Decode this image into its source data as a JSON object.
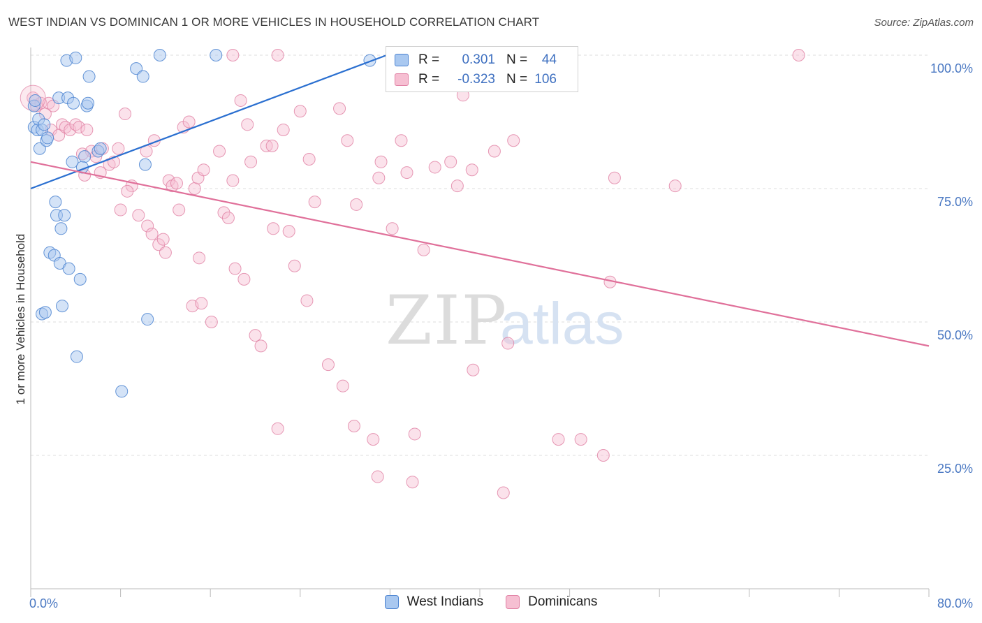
{
  "header": {
    "title": "WEST INDIAN VS DOMINICAN 1 OR MORE VEHICLES IN HOUSEHOLD CORRELATION CHART",
    "source": "Source: ZipAtlas.com"
  },
  "watermark": {
    "zip": "ZIP",
    "atlas": "atlas"
  },
  "legend": {
    "rows": [
      {
        "r_label": "R =",
        "r_value": "0.301",
        "n_label": "N =",
        "n_value": "44"
      },
      {
        "r_label": "R =",
        "r_value": "-0.323",
        "n_label": "N =",
        "n_value": "106"
      }
    ]
  },
  "colors": {
    "west_indians_fill": "#a9c8f0",
    "west_indians_stroke": "#4a82d0",
    "west_indians_line": "#2a6fd0",
    "dominicans_fill": "#f6bfd2",
    "dominicans_stroke": "#e07fa3",
    "dominicans_line": "#e0709a",
    "grid": "#dddddd",
    "axis_text": "#4a78c2"
  },
  "chart_data": {
    "type": "scatter",
    "ylabel": "1 or more Vehicles in Household",
    "x_ticks": [
      "0.0%",
      "80.0%"
    ],
    "y_ticks": [
      "100.0%",
      "75.0%",
      "50.0%",
      "25.0%"
    ],
    "xlim": [
      0,
      80
    ],
    "ylim": [
      0,
      100
    ],
    "grid": true,
    "series": [
      {
        "name": "West Indians",
        "trend": {
          "x0": 0,
          "y0": 75.0,
          "x1": 31.7,
          "y1": 100.0
        },
        "points": [
          [
            0.3,
            90.5
          ],
          [
            0.3,
            86.5
          ],
          [
            0.4,
            91.5
          ],
          [
            0.6,
            86.0
          ],
          [
            0.7,
            88.0
          ],
          [
            0.8,
            82.5
          ],
          [
            1.0,
            86.0
          ],
          [
            1.2,
            87.0
          ],
          [
            1.4,
            84.0
          ],
          [
            1.5,
            84.5
          ],
          [
            2.2,
            72.5
          ],
          [
            2.3,
            70.0
          ],
          [
            2.5,
            92.0
          ],
          [
            2.7,
            67.5
          ],
          [
            3.0,
            70.0
          ],
          [
            3.2,
            99.0
          ],
          [
            3.3,
            92.0
          ],
          [
            1.7,
            63.0
          ],
          [
            2.1,
            62.5
          ],
          [
            2.6,
            61.0
          ],
          [
            3.4,
            60.0
          ],
          [
            4.0,
            99.5
          ],
          [
            4.4,
            58.0
          ],
          [
            3.8,
            91.0
          ],
          [
            5.0,
            90.5
          ],
          [
            5.1,
            91.0
          ],
          [
            5.2,
            96.0
          ],
          [
            3.7,
            80.0
          ],
          [
            4.8,
            81.0
          ],
          [
            6.0,
            82.0
          ],
          [
            6.2,
            82.5
          ],
          [
            4.6,
            79.0
          ],
          [
            1.0,
            51.5
          ],
          [
            2.8,
            53.0
          ],
          [
            1.3,
            51.8
          ],
          [
            4.1,
            43.5
          ],
          [
            8.1,
            37.0
          ],
          [
            9.4,
            97.5
          ],
          [
            10.0,
            96.0
          ],
          [
            10.2,
            79.5
          ],
          [
            10.4,
            50.5
          ],
          [
            11.5,
            100.0
          ],
          [
            16.5,
            100.0
          ],
          [
            30.2,
            99.0
          ]
        ]
      },
      {
        "name": "Dominicans",
        "trend": {
          "x0": 0,
          "y0": 80.0,
          "x1": 80,
          "y1": 45.5
        },
        "points": [
          [
            0.2,
            92.0
          ],
          [
            0.5,
            90.5
          ],
          [
            0.9,
            91.0
          ],
          [
            1.3,
            89.0
          ],
          [
            1.6,
            91.0
          ],
          [
            1.8,
            86.0
          ],
          [
            2.0,
            90.5
          ],
          [
            2.5,
            85.0
          ],
          [
            2.8,
            87.0
          ],
          [
            3.1,
            86.5
          ],
          [
            3.5,
            86.0
          ],
          [
            4.0,
            87.0
          ],
          [
            4.3,
            86.5
          ],
          [
            5.0,
            86.0
          ],
          [
            5.4,
            82.0
          ],
          [
            4.6,
            81.5
          ],
          [
            5.8,
            81.0
          ],
          [
            6.4,
            82.5
          ],
          [
            7.0,
            79.5
          ],
          [
            7.4,
            80.0
          ],
          [
            6.2,
            78.0
          ],
          [
            4.8,
            77.5
          ],
          [
            7.8,
            82.5
          ],
          [
            8.4,
            89.0
          ],
          [
            9.0,
            75.5
          ],
          [
            8.0,
            71.0
          ],
          [
            8.6,
            74.5
          ],
          [
            9.6,
            70.0
          ],
          [
            10.3,
            82.0
          ],
          [
            11.0,
            84.0
          ],
          [
            10.4,
            68.0
          ],
          [
            10.8,
            66.5
          ],
          [
            11.4,
            64.5
          ],
          [
            11.8,
            65.5
          ],
          [
            12.3,
            76.5
          ],
          [
            12.6,
            75.5
          ],
          [
            13.0,
            76.0
          ],
          [
            12.0,
            63.0
          ],
          [
            13.2,
            71.0
          ],
          [
            13.6,
            86.5
          ],
          [
            14.1,
            87.5
          ],
          [
            14.6,
            75.0
          ],
          [
            14.9,
            77.0
          ],
          [
            15.4,
            78.5
          ],
          [
            15.0,
            62.0
          ],
          [
            14.4,
            53.0
          ],
          [
            15.2,
            53.5
          ],
          [
            16.1,
            50.0
          ],
          [
            16.8,
            82.0
          ],
          [
            17.2,
            70.5
          ],
          [
            17.6,
            69.5
          ],
          [
            18.0,
            76.5
          ],
          [
            18.2,
            60.0
          ],
          [
            18.7,
            91.5
          ],
          [
            19.0,
            58.0
          ],
          [
            19.3,
            87.0
          ],
          [
            19.6,
            80.0
          ],
          [
            20.0,
            47.5
          ],
          [
            20.5,
            45.5
          ],
          [
            21.0,
            83.0
          ],
          [
            21.5,
            83.0
          ],
          [
            21.6,
            67.5
          ],
          [
            22.0,
            30.0
          ],
          [
            22.5,
            86.0
          ],
          [
            23.0,
            67.0
          ],
          [
            23.5,
            60.5
          ],
          [
            24.0,
            89.5
          ],
          [
            24.6,
            54.0
          ],
          [
            24.8,
            80.5
          ],
          [
            25.3,
            72.5
          ],
          [
            26.5,
            42.0
          ],
          [
            27.5,
            90.0
          ],
          [
            27.8,
            38.0
          ],
          [
            28.2,
            84.0
          ],
          [
            28.8,
            30.5
          ],
          [
            29.0,
            72.0
          ],
          [
            30.5,
            28.0
          ],
          [
            31.0,
            77.0
          ],
          [
            31.2,
            80.0
          ],
          [
            32.2,
            67.5
          ],
          [
            33.0,
            84.0
          ],
          [
            33.5,
            78.0
          ],
          [
            34.2,
            29.0
          ],
          [
            35.0,
            63.5
          ],
          [
            36.0,
            79.0
          ],
          [
            37.4,
            80.0
          ],
          [
            38.0,
            75.5
          ],
          [
            38.5,
            92.5
          ],
          [
            39.3,
            78.5
          ],
          [
            39.4,
            41.0
          ],
          [
            41.3,
            82.0
          ],
          [
            42.1,
            18.0
          ],
          [
            42.5,
            46.0
          ],
          [
            43.0,
            84.0
          ],
          [
            47.0,
            28.0
          ],
          [
            49.0,
            28.0
          ],
          [
            51.0,
            25.0
          ],
          [
            51.6,
            57.5
          ],
          [
            52.0,
            77.0
          ],
          [
            57.4,
            75.5
          ],
          [
            68.4,
            100.0
          ],
          [
            22.0,
            100.0
          ],
          [
            32.7,
            100.0
          ],
          [
            34.0,
            20.0
          ],
          [
            30.9,
            21.0
          ],
          [
            18.0,
            100.0
          ]
        ]
      }
    ]
  }
}
